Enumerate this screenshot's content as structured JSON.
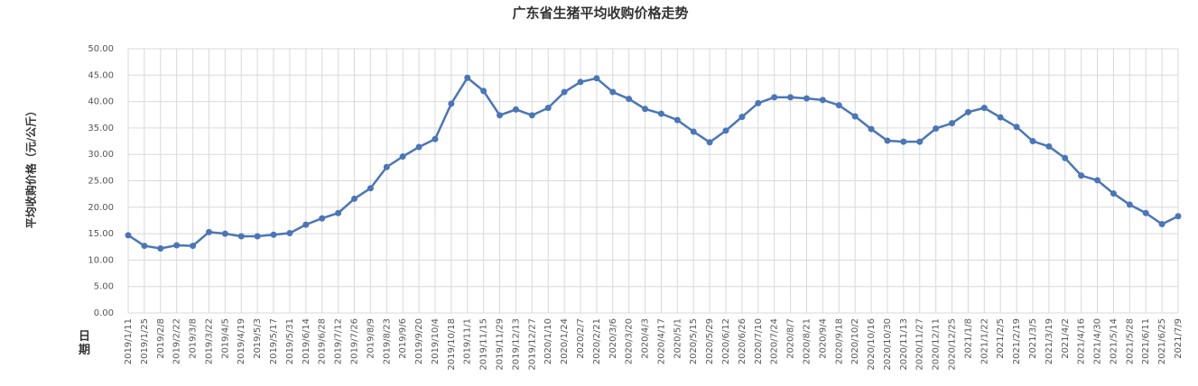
{
  "chart_data": {
    "type": "line",
    "title": "广东省生猪平均收购价格走势",
    "y_label": "平均收购价格（元/公斤）",
    "x_label": "日期",
    "categories": [
      "2019/1/11",
      "2019/1/25",
      "2019/2/8",
      "2019/2/22",
      "2019/3/8",
      "2019/3/22",
      "2019/4/5",
      "2019/4/19",
      "2019/5/3",
      "2019/5/17",
      "2019/5/31",
      "2019/6/14",
      "2019/6/28",
      "2019/7/12",
      "2019/7/26",
      "2019/8/9",
      "2019/8/23",
      "2019/9/6",
      "2019/9/20",
      "2019/10/4",
      "2019/10/18",
      "2019/11/1",
      "2019/11/15",
      "2019/11/29",
      "2019/12/13",
      "2019/12/27",
      "2020/1/10",
      "2020/1/24",
      "2020/2/7",
      "2020/2/21",
      "2020/3/6",
      "2020/3/20",
      "2020/4/3",
      "2020/4/17",
      "2020/5/1",
      "2020/5/15",
      "2020/5/29",
      "2020/6/12",
      "2020/6/26",
      "2020/7/10",
      "2020/7/24",
      "2020/8/7",
      "2020/8/21",
      "2020/9/4",
      "2020/9/18",
      "2020/10/2",
      "2020/10/16",
      "2020/10/30",
      "2020/11/13",
      "2020/11/27",
      "2020/12/11",
      "2020/12/25",
      "2021/1/8",
      "2021/1/22",
      "2021/2/5",
      "2021/2/19",
      "2021/3/5",
      "2021/3/19",
      "2021/4/2",
      "2021/4/16",
      "2021/4/30",
      "2021/5/14",
      "2021/5/28",
      "2021/6/11",
      "2021/6/25",
      "2021/7/9"
    ],
    "values": [
      14.7,
      12.7,
      12.2,
      12.8,
      12.7,
      15.3,
      15.0,
      14.5,
      14.5,
      14.8,
      15.1,
      16.7,
      17.9,
      18.9,
      21.6,
      23.6,
      27.6,
      29.6,
      31.4,
      32.9,
      39.6,
      44.5,
      42.0,
      37.4,
      38.5,
      37.4,
      38.8,
      41.8,
      43.7,
      44.4,
      41.8,
      40.5,
      38.6,
      37.7,
      36.5,
      34.3,
      32.3,
      34.5,
      37.1,
      39.7,
      40.8,
      40.8,
      40.6,
      40.3,
      39.3,
      37.2,
      34.8,
      32.6,
      32.4,
      32.4,
      34.9,
      35.9,
      38.0,
      38.8,
      37.0,
      35.2,
      32.5,
      31.5,
      29.3,
      26.0,
      25.1,
      22.6,
      20.5,
      18.9,
      16.8,
      18.3
    ],
    "color": "#4a76b8",
    "ylim": [
      0,
      50
    ],
    "yticks": [
      {
        "value": 0,
        "label": "0.00"
      },
      {
        "value": 5,
        "label": "5.00"
      },
      {
        "value": 10,
        "label": "10.00"
      },
      {
        "value": 15,
        "label": "15.00"
      },
      {
        "value": 20,
        "label": "20.00"
      },
      {
        "value": 25,
        "label": "25.00"
      },
      {
        "value": 30,
        "label": "30.00"
      },
      {
        "value": 35,
        "label": "35.00"
      },
      {
        "value": 40,
        "label": "40.00"
      },
      {
        "value": 45,
        "label": "45.00"
      },
      {
        "value": 50,
        "label": "50.00"
      }
    ],
    "grid": true
  }
}
